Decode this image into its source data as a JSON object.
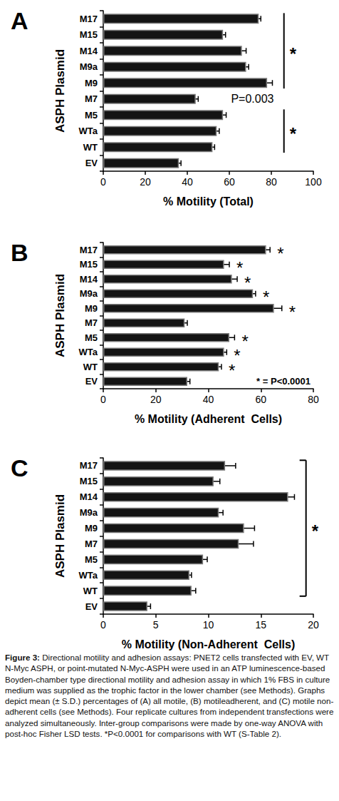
{
  "chart_data": [
    {
      "type": "bar",
      "orientation": "horizontal",
      "title": "A",
      "ylabel": "ASPH Plasmid",
      "xlabel": "% Motility (Total)",
      "categories": [
        "M17",
        "M15",
        "M14",
        "M9a",
        "M9",
        "M7",
        "M5",
        "WTa",
        "WT",
        "EV"
      ],
      "values": [
        74,
        57,
        66,
        68,
        78,
        44,
        57,
        54,
        52,
        36
      ],
      "errors": [
        1,
        1.2,
        2,
        1.2,
        2.5,
        1.2,
        1.5,
        1.2,
        1,
        1
      ],
      "color": "#141414",
      "xlim": [
        0,
        100
      ],
      "xticks": [
        0,
        20,
        40,
        60,
        80,
        100
      ],
      "grid": false,
      "annotations": [
        {
          "type": "bracket",
          "from": "M17",
          "to": "M9",
          "text": "*"
        },
        {
          "type": "text",
          "at": "M7",
          "text": "P=0.003"
        },
        {
          "type": "bracket",
          "from": "M5",
          "to": "WT",
          "text": "*"
        }
      ]
    },
    {
      "type": "bar",
      "orientation": "horizontal",
      "title": "B",
      "ylabel": "ASPH Plasmid",
      "xlabel": "% Motility (Adherent  Cells)",
      "categories": [
        "M17",
        "M15",
        "M14",
        "M9a",
        "M9",
        "M7",
        "M5",
        "WTa",
        "WT",
        "EV"
      ],
      "values": [
        62,
        46,
        49,
        57,
        65,
        31,
        48,
        46,
        44,
        32
      ],
      "errors": [
        1.5,
        2,
        2,
        1,
        3,
        1,
        2,
        1,
        1,
        1
      ],
      "color": "#141414",
      "xlim": [
        0,
        80
      ],
      "xticks": [
        0,
        20,
        40,
        60,
        80
      ],
      "grid": false,
      "annotations": [
        {
          "type": "mark",
          "at": "M17",
          "text": "*"
        },
        {
          "type": "mark",
          "at": "M15",
          "text": "*"
        },
        {
          "type": "mark",
          "at": "M14",
          "text": "*"
        },
        {
          "type": "mark",
          "at": "M9a",
          "text": "*"
        },
        {
          "type": "mark",
          "at": "M9",
          "text": "*"
        },
        {
          "type": "mark",
          "at": "M5",
          "text": "*"
        },
        {
          "type": "mark",
          "at": "WTa",
          "text": "*"
        },
        {
          "type": "mark",
          "at": "WT",
          "text": "*"
        },
        {
          "type": "note",
          "text": "* = P<0.0001"
        }
      ]
    },
    {
      "type": "bar",
      "orientation": "horizontal",
      "title": "C",
      "ylabel": "ASPH Plasmid",
      "xlabel": "% Motility (Non-Adherent  Cells)",
      "categories": [
        "M17",
        "M15",
        "M14",
        "M9a",
        "M9",
        "M7",
        "M5",
        "WTa",
        "WT",
        "EV"
      ],
      "values": [
        11.6,
        10.5,
        17.6,
        11,
        13.4,
        12.9,
        9.5,
        8.2,
        8.4,
        4.2
      ],
      "errors": [
        1,
        0.6,
        0.6,
        0.4,
        1,
        1.4,
        0.4,
        0.2,
        0.4,
        0.3
      ],
      "color": "#141414",
      "xlim": [
        0,
        20
      ],
      "xticks": [
        0,
        5,
        10,
        15,
        20
      ],
      "grid": false,
      "annotations": [
        {
          "type": "capped_bracket",
          "from": "M17",
          "to": "WT",
          "text": "*"
        }
      ]
    }
  ],
  "caption": {
    "label": "Figure 3:",
    "text": "Directional motility and adhesion assays: PNET2 cells transfected with EV, WT N-Myc ASPH, or point-mutated N-Myc-ASPH were used in an ATP luminescence-based Boyden-chamber type directional motility and adhesion assay in which 1% FBS in culture medium was supplied as the trophic factor in the lower chamber (see Methods). Graphs depict mean (± S.D.) percentages of (A) all motile, (B) motileadherent, and (C) motile non-adherent cells (see Methods). Four replicate cultures from independent transfections were analyzed simultaneously. Inter-group comparisons were made by one-way ANOVA with post-hoc Fisher LSD tests. *P<0.0001 for comparisons with WT (S-Table 2)."
  }
}
